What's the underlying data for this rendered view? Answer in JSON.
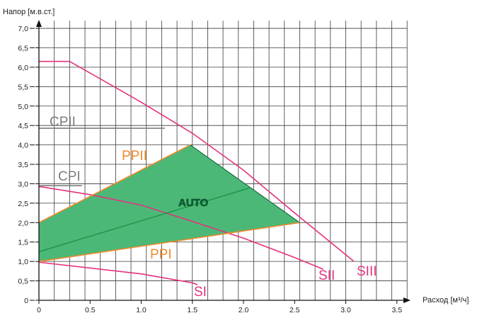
{
  "chart_data": {
    "type": "line",
    "xlabel": "Расход [м³/ч]",
    "ylabel": "Напор [м.в.ст.]",
    "xlim": [
      0,
      3.7
    ],
    "ylim": [
      0,
      7.3
    ],
    "grid": true,
    "x_ticks": [
      "0",
      "0.5",
      "1.0",
      "1.5",
      "2.0",
      "2.5",
      "3.0",
      "3.5"
    ],
    "y_ticks": [
      "0",
      "0,5",
      "1,0",
      "1,5",
      "2,0",
      "2,5",
      "3,0",
      "3,5",
      "4,0",
      "4,5",
      "5,0",
      "5,5",
      "6,0",
      "6,5",
      "7,0"
    ],
    "series": [
      {
        "name": "SIII",
        "color": "#e4327f",
        "x": [
          0,
          0.3,
          1.0,
          1.5,
          2.0,
          2.5,
          3.08
        ],
        "y": [
          6.15,
          6.15,
          5.1,
          4.3,
          3.35,
          2.25,
          1.0
        ]
      },
      {
        "name": "SII",
        "color": "#e4327f",
        "x": [
          0,
          0.5,
          1.0,
          1.5,
          2.0,
          2.5,
          2.78
        ],
        "y": [
          2.93,
          2.72,
          2.45,
          2.03,
          1.6,
          1.1,
          0.8
        ]
      },
      {
        "name": "SI",
        "color": "#e4327f",
        "x": [
          0,
          0.5,
          1.0,
          1.5,
          1.55
        ],
        "y": [
          0.98,
          0.83,
          0.68,
          0.45,
          0.4
        ]
      },
      {
        "name": "PPII",
        "color": "#ef8a2b",
        "x": [
          0,
          1.48
        ],
        "y": [
          2.0,
          4.0
        ]
      },
      {
        "name": "PPI",
        "color": "#ef8a2b",
        "x": [
          0,
          2.55
        ],
        "y": [
          1.0,
          2.0
        ]
      },
      {
        "name": "AUTO",
        "color": "#1e9a4c",
        "x": [
          0,
          2.07
        ],
        "y": [
          1.25,
          2.9
        ]
      },
      {
        "name": "CPII",
        "color": "#7d7d7d",
        "x": [
          0,
          1.23
        ],
        "y": [
          4.43,
          4.43
        ]
      },
      {
        "name": "CPI",
        "color": "#7d7d7d",
        "x": [
          0,
          0.42
        ],
        "y": [
          2.95,
          2.95
        ]
      }
    ],
    "auto_area": {
      "x": [
        0,
        1.48,
        2.55,
        0
      ],
      "y": [
        2.0,
        4.0,
        2.0,
        1.0
      ],
      "fill": "#4cb877",
      "edge": "#0e5d33"
    },
    "labels": {
      "cp2": "CPII",
      "cp1": "CPI",
      "pp2": "PPII",
      "pp1": "PPI",
      "auto": "AUTO",
      "s1": "SI",
      "s2": "SII",
      "s3": "SIII"
    }
  }
}
